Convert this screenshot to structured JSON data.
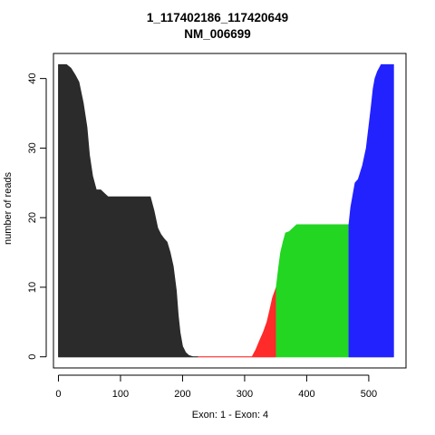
{
  "chart_data": {
    "type": "area",
    "title": "1_117402186_117420649",
    "subtitle": "NM_006699",
    "xlabel": "Exon: 1 - Exon: 4",
    "ylabel": "number of reads",
    "xlim": [
      -8,
      560
    ],
    "ylim": [
      -1.6,
      43.6
    ],
    "xticks": [
      0,
      100,
      200,
      300,
      400,
      500
    ],
    "yticks": [
      0,
      10,
      20,
      30,
      40
    ],
    "grid": false,
    "legend": "none",
    "series": [
      {
        "color": "#2b2b2b",
        "points": [
          [
            0,
            42
          ],
          [
            13,
            42
          ],
          [
            20,
            41.5
          ],
          [
            27,
            40.5
          ],
          [
            33,
            39.5
          ],
          [
            40,
            36.5
          ],
          [
            46,
            33
          ],
          [
            50,
            29
          ],
          [
            55,
            26
          ],
          [
            61,
            24
          ],
          [
            68,
            24
          ],
          [
            75,
            23.4
          ],
          [
            80,
            23
          ],
          [
            85,
            23
          ],
          [
            90,
            23
          ],
          [
            100,
            23
          ],
          [
            110,
            23
          ],
          [
            120,
            23
          ],
          [
            130,
            23
          ],
          [
            140,
            23
          ],
          [
            148,
            23
          ],
          [
            154,
            21
          ],
          [
            160,
            18.5
          ],
          [
            165,
            17.6
          ],
          [
            170,
            17
          ],
          [
            175,
            16.5
          ],
          [
            180,
            15
          ],
          [
            185,
            13
          ],
          [
            190,
            9.5
          ],
          [
            193,
            6
          ],
          [
            196,
            3.5
          ],
          [
            200,
            1.5
          ],
          [
            205,
            0.6
          ],
          [
            210,
            0.2
          ],
          [
            217,
            0
          ],
          [
            225,
            0
          ]
        ]
      },
      {
        "color": "#ff2a2a",
        "points": [
          [
            225,
            0
          ],
          [
            240,
            0
          ],
          [
            260,
            0
          ],
          [
            280,
            0
          ],
          [
            300,
            0
          ],
          [
            312,
            0
          ],
          [
            318,
            1
          ],
          [
            325,
            2.5
          ],
          [
            330,
            3.5
          ],
          [
            336,
            5
          ],
          [
            340,
            6.5
          ],
          [
            345,
            8.5
          ],
          [
            351,
            10
          ]
        ]
      },
      {
        "color": "#22d622",
        "points": [
          [
            351,
            10
          ],
          [
            355,
            13
          ],
          [
            358,
            15
          ],
          [
            362,
            16.5
          ],
          [
            366,
            17.8
          ],
          [
            372,
            18
          ],
          [
            378,
            18.5
          ],
          [
            384,
            19
          ],
          [
            390,
            19
          ],
          [
            400,
            19
          ],
          [
            420,
            19
          ],
          [
            440,
            19
          ],
          [
            455,
            19
          ],
          [
            465,
            19
          ],
          [
            468,
            19
          ]
        ]
      },
      {
        "color": "#2222ff",
        "points": [
          [
            468,
            19
          ],
          [
            471,
            21.5
          ],
          [
            474,
            23
          ],
          [
            478,
            25
          ],
          [
            483,
            25.5
          ],
          [
            490,
            27.5
          ],
          [
            496,
            30
          ],
          [
            500,
            33
          ],
          [
            504,
            36
          ],
          [
            507,
            38.5
          ],
          [
            510,
            40
          ],
          [
            514,
            41
          ],
          [
            520,
            42
          ],
          [
            530,
            42
          ],
          [
            540,
            42
          ]
        ]
      }
    ]
  }
}
